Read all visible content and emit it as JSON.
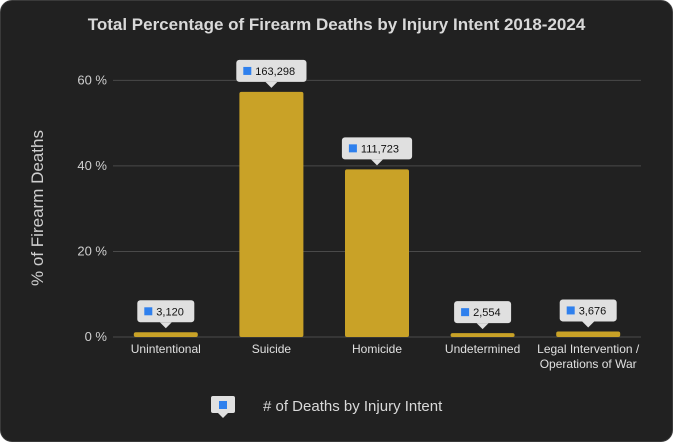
{
  "colors": {
    "background": "#212121",
    "bar": "#c9a227",
    "grid": "#4a4a4a",
    "tooltip_bg": "#e0e0e0",
    "marker": "#2f80ed"
  },
  "chart_data": {
    "type": "bar",
    "title": "Total Percentage of Firearm Deaths by Injury Intent 2018-2024",
    "xlabel": "",
    "ylabel": "% of Firearm Deaths",
    "ylim": [
      0,
      65
    ],
    "yticks": [
      0,
      20,
      40,
      60
    ],
    "ytick_labels": [
      "0 %",
      "20 %",
      "40 %",
      "60 %"
    ],
    "categories": [
      [
        "Unintentional"
      ],
      [
        "Suicide"
      ],
      [
        "Homicide"
      ],
      [
        "Undetermined"
      ],
      [
        "Legal Intervention /",
        "Operations of War"
      ]
    ],
    "values": [
      1.1,
      57.3,
      39.2,
      0.9,
      1.3
    ],
    "data_labels": [
      "3,120",
      "163,298",
      "111,723",
      "2,554",
      "3,676"
    ],
    "legend": {
      "label": "# of Deaths by Injury Intent",
      "position": "bottom"
    },
    "grid": true
  }
}
